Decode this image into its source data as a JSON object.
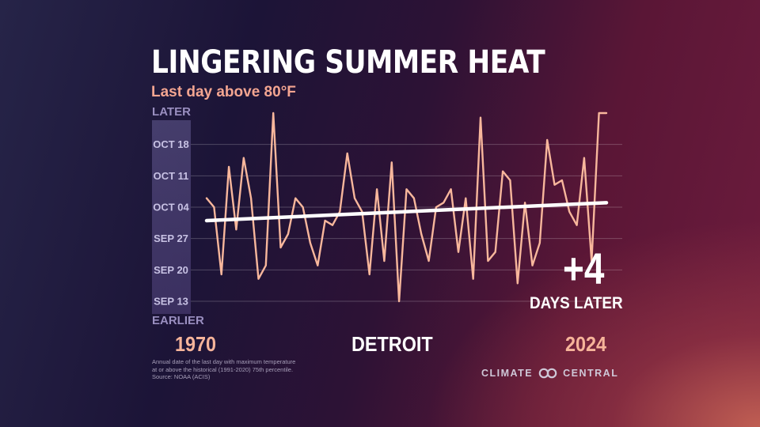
{
  "title": "LINGERING SUMMER HEAT",
  "subtitle": "Last day above 80°F",
  "y_axis": {
    "later_label": "LATER",
    "earlier_label": "EARLIER"
  },
  "location": "DETROIT",
  "start_year_label": "1970",
  "end_year_label": "2024",
  "trend_change": "+4",
  "trend_change_label": "DAYS LATER",
  "footnote": {
    "line1": "Annual date of the last day with maximum temperature",
    "line2": "at or above the historical (1991-2020) 75th percentile.",
    "line3": "Source: NOAA (ACIS)"
  },
  "brand": {
    "left": "CLIMATE",
    "right": "CENTRAL"
  },
  "colors": {
    "series_line": "#f8b79c",
    "trend_line": "#ffffff",
    "subtitle": "#f3a591",
    "year_labels": "#f6b49a"
  },
  "chart_data": {
    "type": "line",
    "title": "LINGERING SUMMER HEAT",
    "subtitle": "Last day above 80°F",
    "xlabel": "",
    "ylabel": "",
    "x": [
      1970,
      1971,
      1972,
      1973,
      1974,
      1975,
      1976,
      1977,
      1978,
      1979,
      1980,
      1981,
      1982,
      1983,
      1984,
      1985,
      1986,
      1987,
      1988,
      1989,
      1990,
      1991,
      1992,
      1993,
      1994,
      1995,
      1996,
      1997,
      1998,
      1999,
      2000,
      2001,
      2002,
      2003,
      2004,
      2005,
      2006,
      2007,
      2008,
      2009,
      2010,
      2011,
      2012,
      2013,
      2014,
      2015,
      2016,
      2017,
      2018,
      2019,
      2020,
      2021,
      2022,
      2023,
      2024
    ],
    "x_unit": "year",
    "series": [
      {
        "name": "",
        "values": [
          "2000-10-06",
          "2000-10-04",
          "2000-09-19",
          "2000-10-13",
          "2000-09-29",
          "2000-10-15",
          "2000-10-06",
          "2000-09-18",
          "2000-09-21",
          "2000-10-25",
          "2000-09-25",
          "2000-09-28",
          "2000-10-06",
          "2000-10-04",
          "2000-09-26",
          "2000-09-21",
          "2000-10-01",
          "2000-09-30",
          "2000-10-03",
          "2000-10-16",
          "2000-10-06",
          "2000-10-03",
          "2000-09-19",
          "2000-10-08",
          "2000-09-22",
          "2000-10-14",
          "2000-09-13",
          "2000-10-08",
          "2000-10-06",
          "2000-09-28",
          "2000-09-22",
          "2000-10-04",
          "2000-10-05",
          "2000-10-08",
          "2000-09-24",
          "2000-10-06",
          "2000-09-18",
          "2000-10-24",
          "2000-09-22",
          "2000-09-24",
          "2000-10-12",
          "2000-10-10",
          "2000-09-17",
          "2000-10-05",
          "2000-09-21",
          "2000-09-26",
          "2000-10-19",
          "2000-10-09",
          "2000-10-10",
          "2000-10-03",
          "2000-09-30",
          "2000-10-15",
          "2000-09-22",
          "2000-10-25",
          "2000-10-25"
        ]
      },
      {
        "name": "",
        "type": "trend",
        "values_at_ends": {
          "1970": "2000-10-01",
          "2024": "2000-10-05"
        }
      }
    ],
    "y_date_year_ignored": true,
    "y_ticks": [
      "SEP 13",
      "SEP 20",
      "SEP 27",
      "OCT 04",
      "OCT 11",
      "OCT 18"
    ],
    "ylim": [
      "2000-09-09",
      "2000-10-25"
    ],
    "xlim": [
      1970,
      2024
    ],
    "grid": true,
    "legend": "none"
  }
}
